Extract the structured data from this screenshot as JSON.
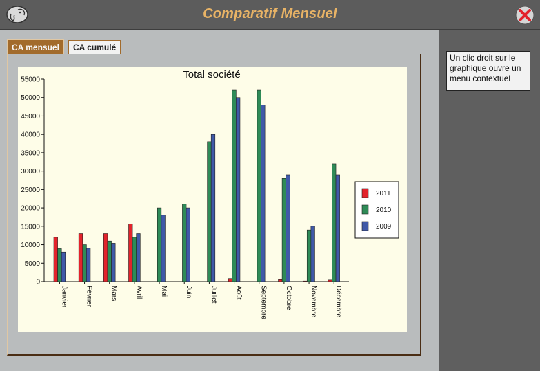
{
  "window": {
    "title": "Comparatif Mensuel"
  },
  "tabs": [
    {
      "label": "CA mensuel",
      "active": true
    },
    {
      "label": "CA cumulé",
      "active": false
    }
  ],
  "help_text": "Un clic droit sur le graphique ouvre un menu contextuel",
  "icons": {
    "app": "elephant-logo-icon",
    "close": "close-icon"
  },
  "colors": {
    "title": "#e8b366",
    "accent": "#a26b2c",
    "s2011": "#e3232c",
    "s2010": "#2e8b57",
    "s2009": "#4059a8"
  },
  "chart_data": {
    "type": "bar",
    "title": "Total société",
    "xlabel": "",
    "ylabel": "",
    "ylim": [
      0,
      55000
    ],
    "yticks": [
      "0",
      "5000",
      "10000",
      "15000",
      "20000",
      "25000",
      "30000",
      "35000",
      "40000",
      "45000",
      "50000",
      "55000"
    ],
    "categories": [
      "Janvier",
      "Février",
      "Mars",
      "Avril",
      "Mai",
      "Juin",
      "Juillet",
      "Août",
      "Septembre",
      "Octobre",
      "Novembre",
      "Décembre"
    ],
    "series": [
      {
        "name": "2011",
        "color": "#e3232c",
        "values": [
          12000,
          13000,
          13000,
          15600,
          0,
          0,
          0,
          800,
          0,
          500,
          150,
          400
        ]
      },
      {
        "name": "2010",
        "color": "#2e8b57",
        "values": [
          8900,
          10000,
          11000,
          12000,
          20000,
          21000,
          38000,
          52000,
          52000,
          28000,
          14000,
          32000
        ]
      },
      {
        "name": "2009",
        "color": "#4059a8",
        "values": [
          8000,
          9000,
          10400,
          13000,
          18000,
          20000,
          40000,
          50000,
          48000,
          29000,
          15000,
          29000
        ]
      }
    ],
    "legend_position": "right",
    "grid": false
  }
}
